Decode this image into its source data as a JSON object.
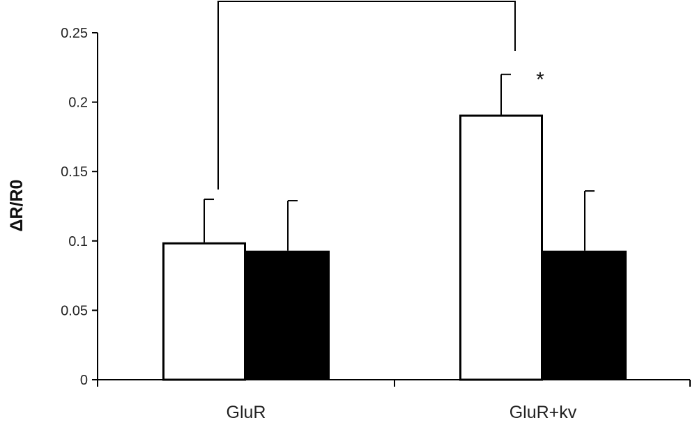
{
  "chart_data": {
    "type": "bar",
    "title": "",
    "xlabel": "",
    "ylabel": "ΔR/R0",
    "categories": [
      "GluR",
      "GluR+kv"
    ],
    "series": [
      {
        "values": [
          0.099,
          0.191
        ],
        "errors": [
          0.031,
          0.029
        ],
        "color": "#ffffff"
      },
      {
        "values": [
          0.093,
          0.093
        ],
        "errors": [
          0.036,
          0.043
        ],
        "color": "#000000"
      }
    ],
    "ylim": [
      0,
      0.25
    ],
    "yticks": [
      0,
      0.05,
      0.1,
      0.15,
      0.2,
      0.25
    ],
    "ytick_labels": [
      "0",
      "0.05",
      "0.1",
      "0.15",
      "0.2",
      "0.25"
    ],
    "grid": false,
    "legend": "none",
    "annotations": [
      {
        "text": "*",
        "category": "GluR+kv",
        "series": 0
      }
    ],
    "significance_bracket": {
      "from_category": "GluR",
      "to_category": "GluR+kv",
      "series": 0
    }
  }
}
